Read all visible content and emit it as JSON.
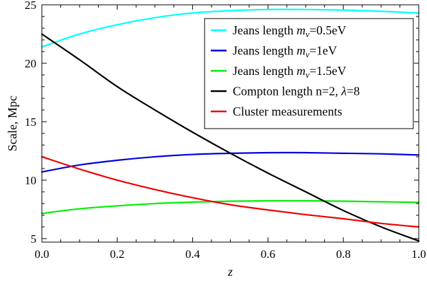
{
  "chart_data": {
    "type": "line",
    "title": "",
    "xlabel": "z",
    "ylabel": "Scale, Mpc",
    "xlim": [
      0,
      1
    ],
    "ylim": [
      4.7,
      25
    ],
    "xticks": [
      "0.0",
      "0.2",
      "0.4",
      "0.6",
      "0.8",
      "1.0"
    ],
    "xtick_values": [
      0,
      0.2,
      0.4,
      0.6,
      0.8,
      1.0
    ],
    "yticks": [
      "5",
      "10",
      "15",
      "20",
      "25"
    ],
    "ytick_values": [
      5,
      10,
      15,
      20,
      25
    ],
    "grid": false,
    "legend_position": "top-right",
    "series": [
      {
        "label_parts": [
          "Jeans length ",
          "m",
          "ν",
          "=0.5eV"
        ],
        "color": "#00ffff",
        "x": [
          0,
          0.1,
          0.2,
          0.3,
          0.4,
          0.5,
          0.6,
          0.7,
          0.8,
          0.9,
          1.0
        ],
        "y": [
          21.4,
          22.5,
          23.3,
          23.9,
          24.3,
          24.5,
          24.6,
          24.6,
          24.55,
          24.45,
          24.3
        ]
      },
      {
        "label_parts": [
          "Jeans length ",
          "m",
          "ν",
          "=1eV"
        ],
        "color": "#0000dd",
        "x": [
          0,
          0.1,
          0.2,
          0.3,
          0.4,
          0.5,
          0.6,
          0.7,
          0.8,
          0.9,
          1.0
        ],
        "y": [
          10.7,
          11.3,
          11.7,
          12.0,
          12.2,
          12.3,
          12.35,
          12.35,
          12.3,
          12.25,
          12.15
        ]
      },
      {
        "label_parts": [
          "Jeans length ",
          "m",
          "ν",
          "=1.5eV"
        ],
        "color": "#00ee00",
        "x": [
          0,
          0.1,
          0.2,
          0.3,
          0.4,
          0.5,
          0.6,
          0.7,
          0.8,
          0.9,
          1.0
        ],
        "y": [
          7.15,
          7.55,
          7.8,
          8.0,
          8.12,
          8.2,
          8.23,
          8.23,
          8.2,
          8.15,
          8.1
        ]
      },
      {
        "label_parts": [
          "Compton length n=2, ",
          "λ",
          "=8"
        ],
        "color": "#000000",
        "x": [
          0,
          0.1,
          0.2,
          0.3,
          0.4,
          0.5,
          0.6,
          0.7,
          0.8,
          0.9,
          1.0
        ],
        "y": [
          22.5,
          20.3,
          18.0,
          16.0,
          14.1,
          12.3,
          10.6,
          9.0,
          7.4,
          6.0,
          4.8
        ]
      },
      {
        "label_parts": [
          "Cluster measurements"
        ],
        "color": "#ee0000",
        "x": [
          0,
          0.1,
          0.2,
          0.3,
          0.4,
          0.5,
          0.6,
          0.7,
          0.8,
          0.9,
          1.0
        ],
        "y": [
          12.0,
          10.95,
          10.0,
          9.2,
          8.5,
          7.9,
          7.45,
          7.05,
          6.7,
          6.3,
          6.0
        ]
      }
    ]
  }
}
